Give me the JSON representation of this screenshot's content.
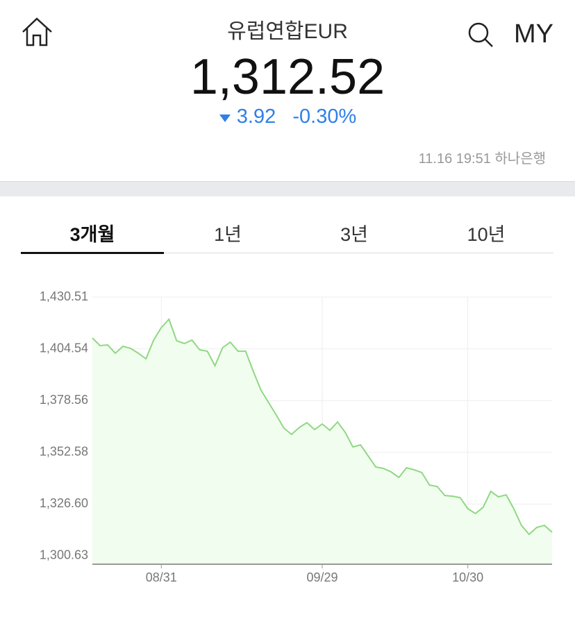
{
  "header": {
    "title": "유럽연합EUR",
    "my": "MY",
    "price": "1,312.52",
    "change": "3.92",
    "change_pct": "-0.30%",
    "timestamp": "11.16 19:51 하나은행"
  },
  "tabs": [
    "3개월",
    "1년",
    "3년",
    "10년"
  ],
  "chart_data": {
    "type": "area",
    "color": "#8fd883",
    "fill": "#f1fdee",
    "categories": [
      null,
      null,
      null,
      null,
      null,
      null,
      null,
      null,
      null,
      "08/31",
      null,
      null,
      null,
      null,
      null,
      null,
      null,
      null,
      null,
      null,
      null,
      null,
      null,
      null,
      null,
      null,
      null,
      null,
      null,
      null,
      "09/29",
      null,
      null,
      null,
      null,
      null,
      null,
      null,
      null,
      null,
      null,
      null,
      null,
      null,
      null,
      null,
      null,
      null,
      null,
      "10/30",
      null,
      null,
      null,
      null,
      null,
      null,
      null,
      null,
      null,
      null,
      null
    ],
    "values": [
      1409.97,
      1406.14,
      1406.48,
      1402.31,
      1405.79,
      1404.74,
      1402.31,
      1399.52,
      1408.92,
      1415.19,
      1419.37,
      1408.57,
      1407.18,
      1408.92,
      1404.05,
      1403.35,
      1396.04,
      1405.09,
      1407.88,
      1403.35,
      1403.35,
      1393.25,
      1383.85,
      1377.58,
      1371.32,
      1364.7,
      1361.57,
      1365.05,
      1367.49,
      1364.0,
      1366.79,
      1363.66,
      1367.83,
      1362.61,
      1355.3,
      1356.34,
      1350.77,
      1345.2,
      1344.5,
      1342.76,
      1339.98,
      1344.85,
      1343.81,
      1342.42,
      1336.15,
      1335.45,
      1330.92,
      1330.58,
      1329.88,
      1324.31,
      1321.87,
      1325.01,
      1333.01,
      1330.23,
      1331.27,
      1324.31,
      1315.95,
      1311.43,
      1314.91,
      1315.95,
      1312.52
    ],
    "ylim": [
      1296.45,
      1430.51
    ],
    "yticks": [
      {
        "value": 1300.63,
        "label": "1,300.63"
      },
      {
        "value": 1326.6,
        "label": "1,326.60"
      },
      {
        "value": 1352.58,
        "label": "1,352.58"
      },
      {
        "value": 1378.56,
        "label": "1,378.56"
      },
      {
        "value": 1404.54,
        "label": "1,404.54"
      },
      {
        "value": 1430.51,
        "label": "1,430.51"
      }
    ],
    "grid": true
  }
}
